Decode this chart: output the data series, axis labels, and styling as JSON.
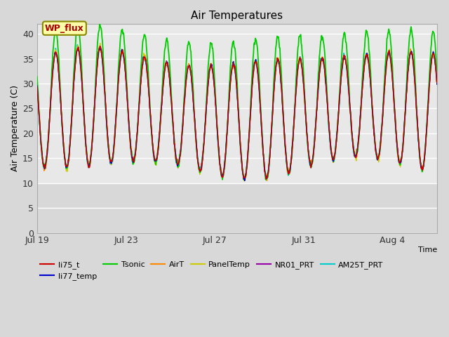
{
  "title": "Air Temperatures",
  "xlabel": "Time",
  "ylabel": "Air Temperature (C)",
  "ylim": [
    0,
    42
  ],
  "yticks": [
    0,
    5,
    10,
    15,
    20,
    25,
    30,
    35,
    40
  ],
  "date_labels": [
    "Jul 19",
    "Jul 23",
    "Jul 27",
    "Jul 31",
    "Aug 4"
  ],
  "date_ticks": [
    0,
    4,
    8,
    12,
    16
  ],
  "annotation_text": "WP_flux",
  "legend_entries": [
    {
      "label": "li75_t",
      "color": "#cc0000"
    },
    {
      "label": "li77_temp",
      "color": "#0000cc"
    },
    {
      "label": "Tsonic",
      "color": "#00cc00"
    },
    {
      "label": "AirT",
      "color": "#ff8800"
    },
    {
      "label": "PanelTemp",
      "color": "#cccc00"
    },
    {
      "label": "NR01_PRT",
      "color": "#9900aa"
    },
    {
      "label": "AM25T_PRT",
      "color": "#00cccc"
    }
  ],
  "plot_bg_color": "#e8e8e8",
  "lower_bg_color": "#d8d8d8",
  "fig_bg_color": "#d8d8d8",
  "n_days": 18,
  "fig_size": [
    6.4,
    4.8
  ],
  "dpi": 100
}
